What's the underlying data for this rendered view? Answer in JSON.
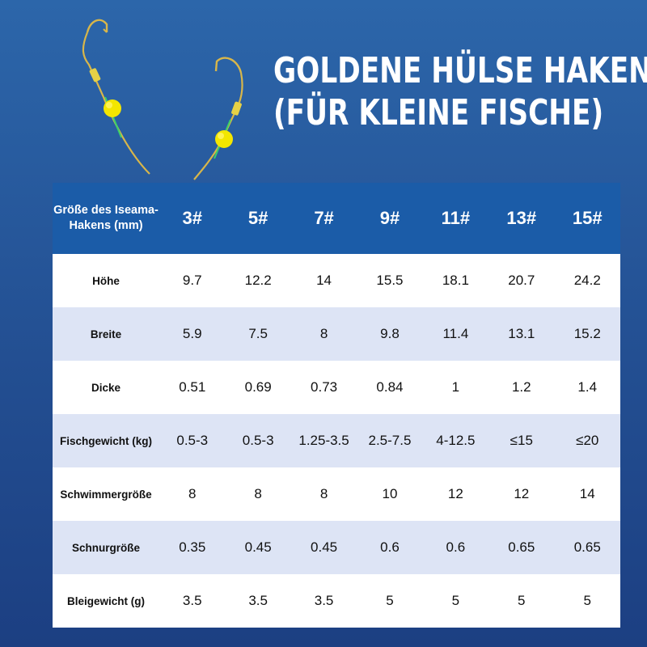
{
  "headline": {
    "line1": "GOLDENE HÜLSE HAKEN",
    "line2": "(FÜR KLEINE FISCHE)"
  },
  "table": {
    "corner_header": "Größe des Iseama-Hakens (mm)",
    "columns": [
      "3#",
      "5#",
      "7#",
      "9#",
      "11#",
      "13#",
      "15#"
    ],
    "rows": [
      {
        "label": "Höhe",
        "values": [
          "9.7",
          "12.2",
          "14",
          "15.5",
          "18.1",
          "20.7",
          "24.2"
        ]
      },
      {
        "label": "Breite",
        "values": [
          "5.9",
          "7.5",
          "8",
          "9.8",
          "11.4",
          "13.1",
          "15.2"
        ]
      },
      {
        "label": "Dicke",
        "values": [
          "0.51",
          "0.69",
          "0.73",
          "0.84",
          "1",
          "1.2",
          "1.4"
        ]
      },
      {
        "label": "Fischgewicht (kg)",
        "values": [
          "0.5-3",
          "0.5-3",
          "1.25-3.5",
          "2.5-7.5",
          "4-12.5",
          "≤15",
          "≤20"
        ]
      },
      {
        "label": "Schwimmergröße",
        "values": [
          "8",
          "8",
          "8",
          "10",
          "12",
          "12",
          "14"
        ]
      },
      {
        "label": "Schnurgröße",
        "values": [
          "0.35",
          "0.45",
          "0.45",
          "0.6",
          "0.6",
          "0.65",
          "0.65"
        ]
      },
      {
        "label": "Bleigewicht (g)",
        "values": [
          "3.5",
          "3.5",
          "3.5",
          "5",
          "5",
          "5",
          "5"
        ]
      }
    ]
  },
  "colors": {
    "background_top": "#2c66aa",
    "background_bottom": "#1c3f82",
    "header_row": "#1b5ca8",
    "row_alt": "#dde4f5",
    "hook_gold": "#d8b64a",
    "float_yellow": "#f3e600",
    "line_green": "#3ad06a"
  },
  "icons": {
    "hero_image": "golden-hooks-with-floats-icon"
  }
}
